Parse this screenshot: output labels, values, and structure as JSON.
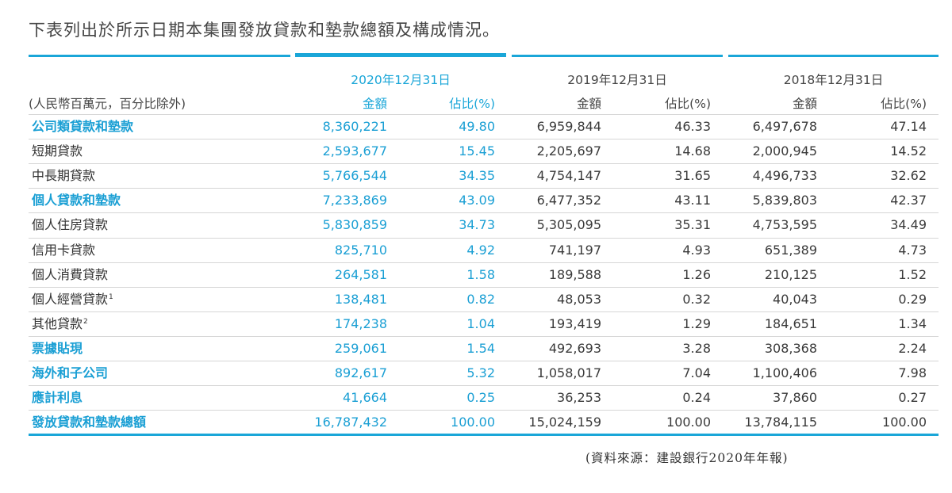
{
  "intro": "下表列出於所示日期本集團發放貸款和墊款總額及構成情況。",
  "unit_note": "(人民幣百萬元，百分比除外)",
  "periods": [
    "2020年12月31日",
    "2019年12月31日",
    "2018年12月31日"
  ],
  "col_amount": "金額",
  "col_share": "佔比(%)",
  "rows": [
    {
      "label": "公司類貸款和墊款",
      "hl": true,
      "v": [
        "8,360,221",
        "49.80",
        "6,959,844",
        "46.33",
        "6,497,678",
        "47.14"
      ]
    },
    {
      "label": "短期貸款",
      "hl": false,
      "v": [
        "2,593,677",
        "15.45",
        "2,205,697",
        "14.68",
        "2,000,945",
        "14.52"
      ]
    },
    {
      "label": "中長期貸款",
      "hl": false,
      "v": [
        "5,766,544",
        "34.35",
        "4,754,147",
        "31.65",
        "4,496,733",
        "32.62"
      ]
    },
    {
      "label": "個人貸款和墊款",
      "hl": true,
      "v": [
        "7,233,869",
        "43.09",
        "6,477,352",
        "43.11",
        "5,839,803",
        "42.37"
      ]
    },
    {
      "label": "個人住房貸款",
      "hl": false,
      "v": [
        "5,830,859",
        "34.73",
        "5,305,095",
        "35.31",
        "4,753,595",
        "34.49"
      ]
    },
    {
      "label": "信用卡貸款",
      "hl": false,
      "v": [
        "825,710",
        "4.92",
        "741,197",
        "4.93",
        "651,389",
        "4.73"
      ]
    },
    {
      "label": "個人消費貸款",
      "hl": false,
      "v": [
        "264,581",
        "1.58",
        "189,588",
        "1.26",
        "210,125",
        "1.52"
      ]
    },
    {
      "label": "個人經營貸款",
      "sup": "1",
      "hl": false,
      "v": [
        "138,481",
        "0.82",
        "48,053",
        "0.32",
        "40,043",
        "0.29"
      ]
    },
    {
      "label": "其他貸款",
      "sup": "2",
      "hl": false,
      "v": [
        "174,238",
        "1.04",
        "193,419",
        "1.29",
        "184,651",
        "1.34"
      ]
    },
    {
      "label": "票據貼現",
      "hl": true,
      "v": [
        "259,061",
        "1.54",
        "492,693",
        "3.28",
        "308,368",
        "2.24"
      ]
    },
    {
      "label": "海外和子公司",
      "hl": true,
      "v": [
        "892,617",
        "5.32",
        "1,058,017",
        "7.04",
        "1,100,406",
        "7.98"
      ]
    },
    {
      "label": "應計利息",
      "hl": true,
      "v": [
        "41,664",
        "0.25",
        "36,253",
        "0.24",
        "37,860",
        "0.27"
      ]
    },
    {
      "label": "發放貸款和墊款總額",
      "hl": true,
      "v": [
        "16,787,432",
        "100.00",
        "15,024,159",
        "100.00",
        "13,784,115",
        "100.00"
      ]
    }
  ],
  "source": "(資料來源：建設銀行2020年年報)",
  "colors": {
    "accent": "#1aa6d8",
    "text": "#333333"
  }
}
